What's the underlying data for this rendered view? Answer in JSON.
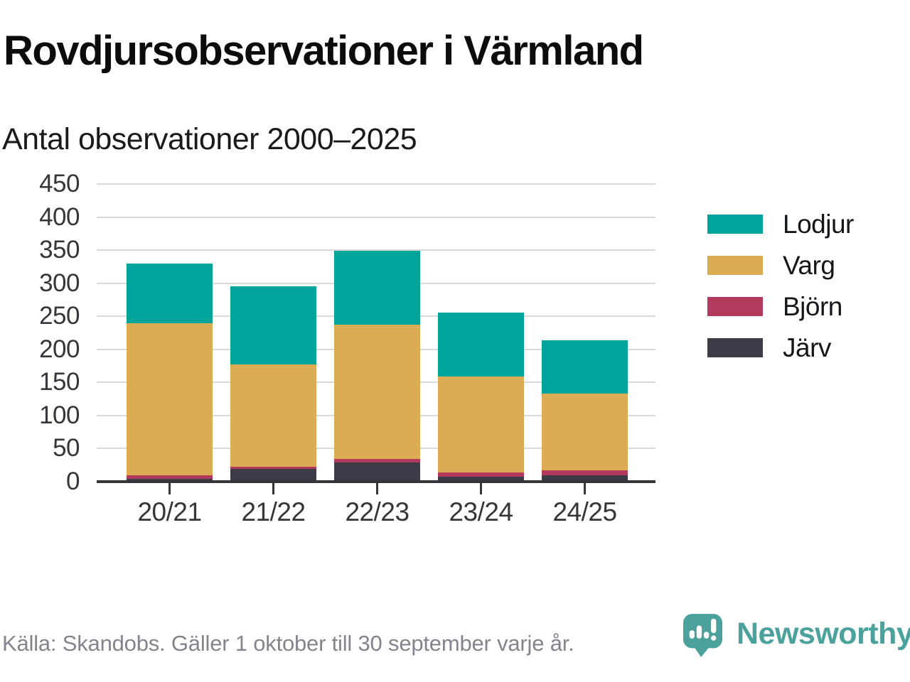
{
  "page": {
    "title": "Rovdjursobservationer i Värmland",
    "subtitle": "Antal observationer 2000–2025",
    "source": "Källa: Skandobs. Gäller 1 oktober till 30 september varje år.",
    "brand": "Newsworthy"
  },
  "colors": {
    "lodjur": "#00a49a",
    "varg": "#dcac55",
    "bjorn": "#b23a5c",
    "jarv": "#3e3b49",
    "grid": "#d9d9d9",
    "axis": "#35353a",
    "brand": "#4ba19b"
  },
  "chart_data": {
    "type": "bar",
    "stacked": true,
    "title": "Rovdjursobservationer i Värmland",
    "subtitle": "Antal observationer 2000–2025",
    "categories": [
      "20/21",
      "21/22",
      "22/23",
      "23/24",
      "24/25"
    ],
    "series": [
      {
        "name": "Lodjur",
        "color": "#00a49a",
        "values": [
          91,
          118,
          112,
          97,
          81
        ]
      },
      {
        "name": "Varg",
        "color": "#dcac55",
        "values": [
          229,
          154,
          203,
          145,
          116
        ]
      },
      {
        "name": "Björn",
        "color": "#b23a5c",
        "values": [
          6,
          4,
          5,
          7,
          7
        ]
      },
      {
        "name": "Järv",
        "color": "#3e3b49",
        "values": [
          4,
          19,
          29,
          7,
          10
        ]
      }
    ],
    "stack_order_bottom_to_top": [
      "Järv",
      "Björn",
      "Varg",
      "Lodjur"
    ],
    "totals": [
      330,
      295,
      349,
      256,
      214
    ],
    "ylim": [
      0,
      450
    ],
    "yticks": [
      0,
      50,
      100,
      150,
      200,
      250,
      300,
      350,
      400,
      450
    ],
    "grid": true,
    "legend_position": "right",
    "source": "Källa: Skandobs. Gäller 1 oktober till 30 september varje år."
  }
}
